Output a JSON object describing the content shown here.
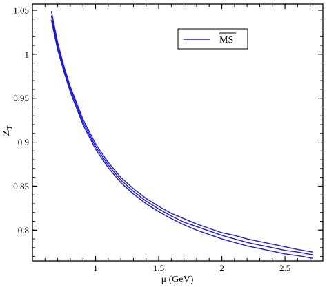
{
  "chart_data": {
    "type": "line",
    "xlabel": "μ (GeV)",
    "ylabel": "Z",
    "ylabel_subscript": "T",
    "xlim": [
      0.5,
      2.8
    ],
    "ylim": [
      0.765,
      1.057
    ],
    "x_ticks": [
      {
        "value": 1,
        "label": "1"
      },
      {
        "value": 1.5,
        "label": "1.5"
      },
      {
        "value": 2,
        "label": "2"
      },
      {
        "value": 2.5,
        "label": "2.5"
      }
    ],
    "y_ticks": [
      {
        "value": 0.8,
        "label": "0.8"
      },
      {
        "value": 0.85,
        "label": "0.85"
      },
      {
        "value": 0.9,
        "label": "0.9"
      },
      {
        "value": 0.95,
        "label": "0.95"
      },
      {
        "value": 1.0,
        "label": "1"
      },
      {
        "value": 1.05,
        "label": "1.05"
      }
    ],
    "x_minor_step": 0.1,
    "y_minor_step": 0.01,
    "grid": false,
    "legend": {
      "position": "top-right",
      "entries": [
        {
          "label": "MS",
          "overline": true,
          "color": "#1a1ad6"
        }
      ]
    },
    "line_color": "#1a1ad6",
    "band": {
      "x": [
        0.65,
        0.7,
        0.75,
        0.8,
        0.9,
        1.0,
        1.1,
        1.2,
        1.3,
        1.4,
        1.5,
        1.6,
        1.7,
        1.8,
        1.9,
        2.0,
        2.1,
        2.2,
        2.3,
        2.4,
        2.5,
        2.6,
        2.72
      ],
      "upper": [
        1.049,
        1.013,
        0.986,
        0.963,
        0.926,
        0.898,
        0.877,
        0.86,
        0.847,
        0.836,
        0.827,
        0.819,
        0.813,
        0.807,
        0.802,
        0.797,
        0.794,
        0.79,
        0.787,
        0.784,
        0.781,
        0.778,
        0.775
      ],
      "central": [
        1.044,
        1.009,
        0.983,
        0.96,
        0.923,
        0.895,
        0.874,
        0.857,
        0.844,
        0.833,
        0.824,
        0.816,
        0.809,
        0.804,
        0.799,
        0.794,
        0.79,
        0.786,
        0.783,
        0.78,
        0.777,
        0.775,
        0.772
      ],
      "lower": [
        1.039,
        1.005,
        0.98,
        0.957,
        0.92,
        0.892,
        0.871,
        0.854,
        0.841,
        0.83,
        0.821,
        0.813,
        0.806,
        0.8,
        0.795,
        0.79,
        0.786,
        0.782,
        0.779,
        0.776,
        0.773,
        0.771,
        0.768
      ]
    }
  }
}
